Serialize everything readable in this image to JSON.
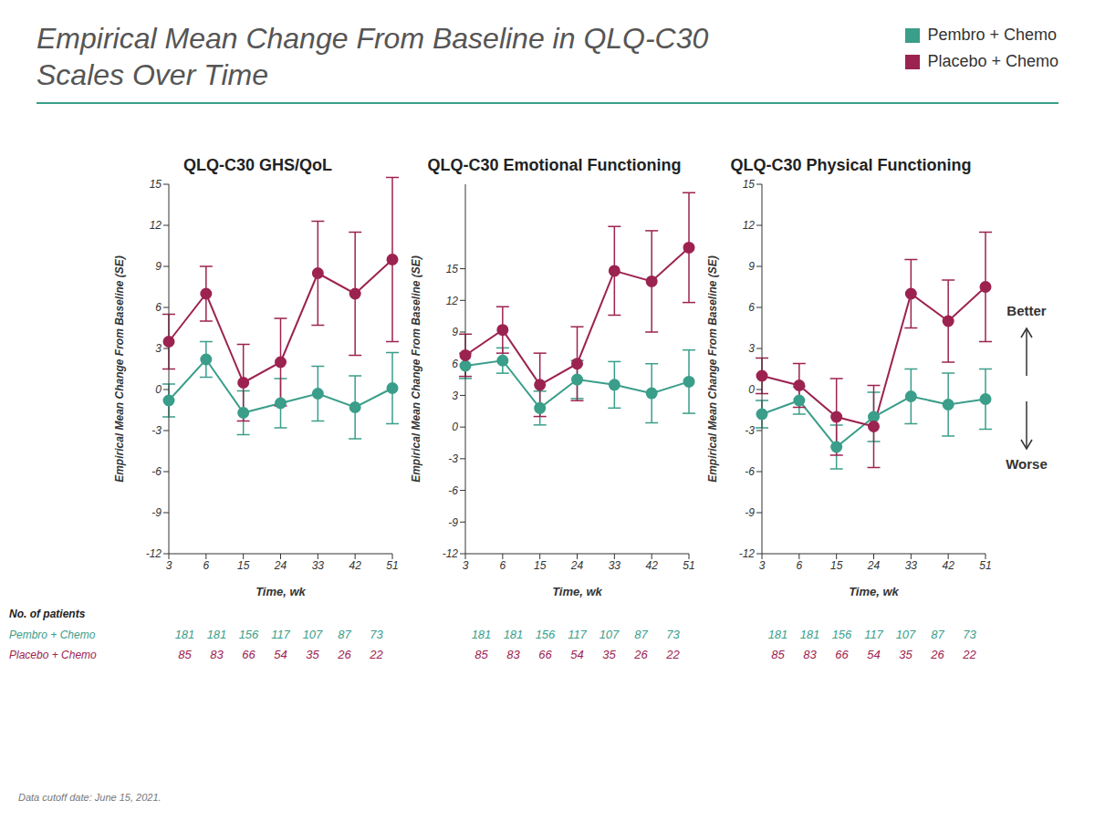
{
  "title": "Empirical Mean Change From Baseline in QLQ-C30 Scales Over Time",
  "legend": "upper right",
  "footnote": "Data cutoff date: June 15, 2021.",
  "chart_data": [
    {
      "type": "line",
      "title": "QLQ-C30 GHS/QoL",
      "x_label": "Time, wk",
      "y_label": "Empirical Mean Change From Baseline (SE)",
      "categories": [
        "3",
        "6",
        "15",
        "24",
        "33",
        "42",
        "51"
      ],
      "ylim": [
        -12,
        15
      ],
      "yticks": [
        -12,
        -9,
        -6,
        -3,
        0,
        3,
        6,
        9,
        12,
        15
      ],
      "patients_label": "No. of patients",
      "series": [
        {
          "name": "Pembro + Chemo",
          "color": "#3a9e8a",
          "values": [
            -0.8,
            2.2,
            -1.7,
            -1.0,
            -0.3,
            -1.3,
            0.1
          ],
          "errors": [
            1.2,
            1.3,
            1.6,
            1.8,
            2.0,
            2.3,
            2.6
          ],
          "patients": [
            181,
            181,
            156,
            117,
            107,
            87,
            73
          ]
        },
        {
          "name": "Placebo + Chemo",
          "color": "#9c2350",
          "values": [
            3.5,
            7.0,
            0.5,
            2.0,
            8.5,
            7.0,
            9.5
          ],
          "errors": [
            2.0,
            2.0,
            2.8,
            3.2,
            3.8,
            4.5,
            6.0
          ],
          "patients": [
            85,
            83,
            66,
            54,
            35,
            26,
            22
          ]
        }
      ]
    },
    {
      "type": "line",
      "title": "QLQ-C30 Emotional Functioning",
      "x_label": "Time, wk",
      "y_label": "Empirical Mean Change From Baseline (SE)",
      "categories": [
        "3",
        "6",
        "15",
        "24",
        "33",
        "42",
        "51"
      ],
      "ylim": [
        -12,
        23
      ],
      "yticks": [
        -12,
        -9,
        -6,
        -3,
        0,
        3,
        6,
        9,
        12,
        15
      ],
      "series": [
        {
          "name": "Pembro + Chemo",
          "color": "#3a9e8a",
          "values": [
            5.8,
            6.3,
            1.8,
            4.5,
            4.0,
            3.2,
            4.3
          ],
          "errors": [
            1.2,
            1.2,
            1.6,
            1.8,
            2.2,
            2.8,
            3.0
          ],
          "patients": [
            181,
            181,
            156,
            117,
            107,
            87,
            73
          ]
        },
        {
          "name": "Placebo + Chemo",
          "color": "#9c2350",
          "values": [
            6.8,
            9.2,
            4.0,
            6.0,
            14.8,
            13.8,
            17.0
          ],
          "errors": [
            2.0,
            2.2,
            3.0,
            3.5,
            4.2,
            4.8,
            5.2
          ],
          "patients": [
            85,
            83,
            66,
            54,
            35,
            26,
            22
          ]
        }
      ]
    },
    {
      "type": "line",
      "title": "QLQ-C30 Physical Functioning",
      "x_label": "Time, wk",
      "y_label": "Empirical Mean Change From Baseline (SE)",
      "categories": [
        "3",
        "6",
        "15",
        "24",
        "33",
        "42",
        "51"
      ],
      "ylim": [
        -12,
        15
      ],
      "yticks": [
        -12,
        -9,
        -6,
        -3,
        0,
        3,
        6,
        9,
        12,
        15
      ],
      "annotations": [
        "Better",
        "Worse"
      ],
      "series": [
        {
          "name": "Pembro + Chemo",
          "color": "#3a9e8a",
          "values": [
            -1.8,
            -0.8,
            -4.2,
            -2.0,
            -0.5,
            -1.1,
            -0.7
          ],
          "errors": [
            1.0,
            1.0,
            1.6,
            1.8,
            2.0,
            2.3,
            2.2
          ],
          "patients": [
            181,
            181,
            156,
            117,
            107,
            87,
            73
          ]
        },
        {
          "name": "Placebo + Chemo",
          "color": "#9c2350",
          "values": [
            1.0,
            0.3,
            -2.0,
            -2.7,
            7.0,
            5.0,
            7.5
          ],
          "errors": [
            1.3,
            1.6,
            2.8,
            3.0,
            2.5,
            3.0,
            4.0
          ],
          "patients": [
            85,
            83,
            66,
            54,
            35,
            26,
            22
          ]
        }
      ]
    }
  ]
}
